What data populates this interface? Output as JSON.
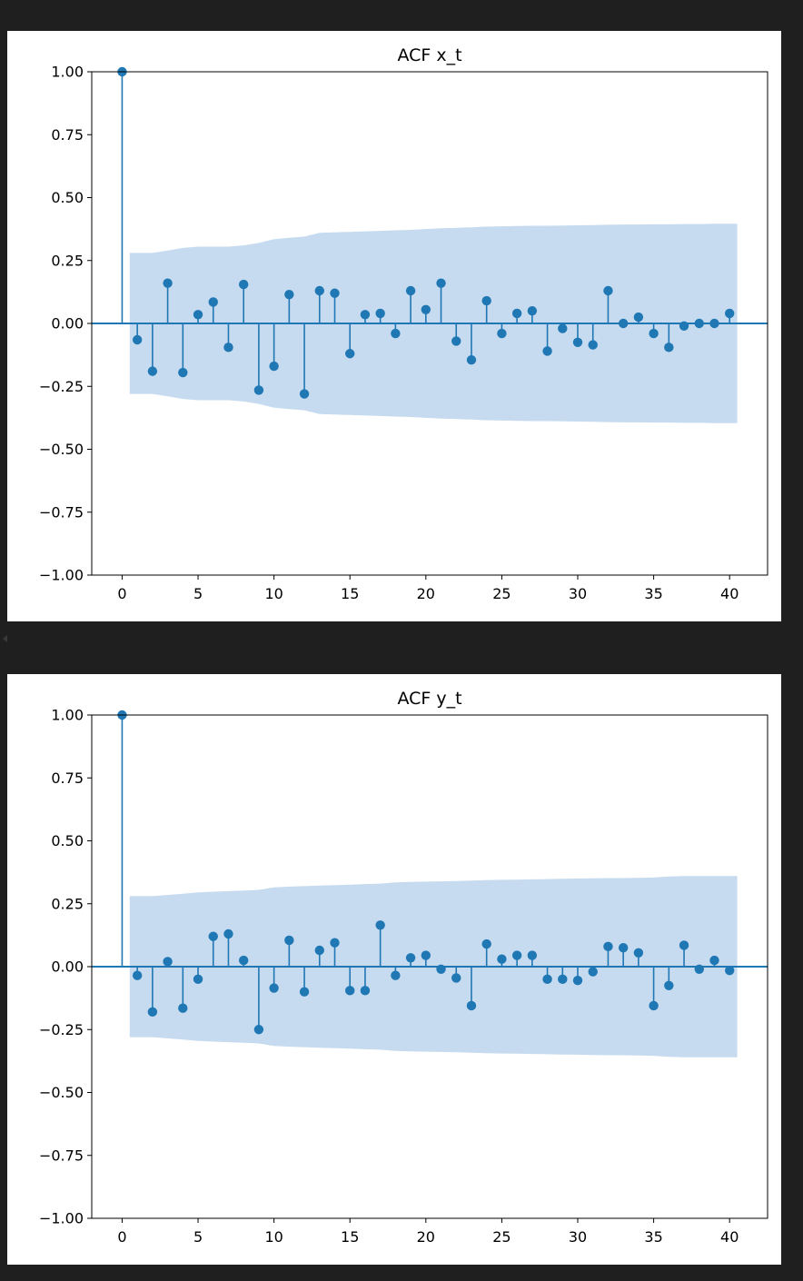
{
  "colors": {
    "stem": "#1f77b4",
    "band": "#c6dbef",
    "frame": "#000000"
  },
  "chart_data": [
    {
      "type": "stem",
      "title": "ACF x_t",
      "xlabel": "",
      "ylabel": "",
      "xlim": [
        -2,
        42.5
      ],
      "ylim": [
        -1.0,
        1.0
      ],
      "xticks": [
        0,
        5,
        10,
        15,
        20,
        25,
        30,
        35,
        40
      ],
      "xtick_labels": [
        "0",
        "5",
        "10",
        "15",
        "20",
        "25",
        "30",
        "35",
        "40"
      ],
      "yticks": [
        -1.0,
        -0.75,
        -0.5,
        -0.25,
        0.0,
        0.25,
        0.5,
        0.75,
        1.0
      ],
      "ytick_labels": [
        "−1.00",
        "−0.75",
        "−0.50",
        "−0.25",
        "0.00",
        "0.25",
        "0.50",
        "0.75",
        "1.00"
      ],
      "lags": [
        0,
        1,
        2,
        3,
        4,
        5,
        6,
        7,
        8,
        9,
        10,
        11,
        12,
        13,
        14,
        15,
        16,
        17,
        18,
        19,
        20,
        21,
        22,
        23,
        24,
        25,
        26,
        27,
        28,
        29,
        30,
        31,
        32,
        33,
        34,
        35,
        36,
        37,
        38,
        39,
        40
      ],
      "values": [
        1.0,
        -0.065,
        -0.19,
        0.16,
        -0.195,
        0.035,
        0.085,
        -0.095,
        0.155,
        -0.265,
        -0.17,
        0.115,
        -0.28,
        0.13,
        0.12,
        -0.12,
        0.035,
        0.04,
        -0.04,
        0.13,
        0.055,
        0.16,
        -0.07,
        -0.145,
        0.09,
        -0.04,
        0.04,
        0.05,
        -0.11,
        -0.02,
        -0.075,
        -0.085,
        0.13,
        0.0,
        0.025,
        -0.04,
        -0.095,
        -0.01,
        0.0,
        0.0,
        0.04
      ],
      "confidence_band": [
        0.28,
        0.28,
        0.28,
        0.29,
        0.3,
        0.305,
        0.305,
        0.305,
        0.31,
        0.32,
        0.335,
        0.34,
        0.345,
        0.36,
        0.362,
        0.364,
        0.366,
        0.368,
        0.37,
        0.372,
        0.375,
        0.378,
        0.38,
        0.382,
        0.385,
        0.386,
        0.387,
        0.388,
        0.388,
        0.389,
        0.39,
        0.391,
        0.392,
        0.393,
        0.393,
        0.394,
        0.394,
        0.395,
        0.395,
        0.396,
        0.396
      ]
    },
    {
      "type": "stem",
      "title": "ACF y_t",
      "xlabel": "",
      "ylabel": "",
      "xlim": [
        -2,
        42.5
      ],
      "ylim": [
        -1.0,
        1.0
      ],
      "xticks": [
        0,
        5,
        10,
        15,
        20,
        25,
        30,
        35,
        40
      ],
      "xtick_labels": [
        "0",
        "5",
        "10",
        "15",
        "20",
        "25",
        "30",
        "35",
        "40"
      ],
      "yticks": [
        -1.0,
        -0.75,
        -0.5,
        -0.25,
        0.0,
        0.25,
        0.5,
        0.75,
        1.0
      ],
      "ytick_labels": [
        "−1.00",
        "−0.75",
        "−0.50",
        "−0.25",
        "0.00",
        "0.25",
        "0.50",
        "0.75",
        "1.00"
      ],
      "lags": [
        0,
        1,
        2,
        3,
        4,
        5,
        6,
        7,
        8,
        9,
        10,
        11,
        12,
        13,
        14,
        15,
        16,
        17,
        18,
        19,
        20,
        21,
        22,
        23,
        24,
        25,
        26,
        27,
        28,
        29,
        30,
        31,
        32,
        33,
        34,
        35,
        36,
        37,
        38,
        39,
        40
      ],
      "values": [
        1.0,
        -0.035,
        -0.18,
        0.02,
        -0.165,
        -0.05,
        0.12,
        0.13,
        0.025,
        -0.25,
        -0.085,
        0.105,
        -0.1,
        0.065,
        0.095,
        -0.095,
        -0.095,
        0.165,
        -0.035,
        0.035,
        0.045,
        -0.01,
        -0.045,
        -0.155,
        0.09,
        0.03,
        0.045,
        0.045,
        -0.05,
        -0.05,
        -0.055,
        -0.02,
        0.08,
        0.075,
        0.055,
        -0.155,
        -0.075,
        0.085,
        -0.01,
        0.025,
        -0.015
      ],
      "confidence_band": [
        0.28,
        0.28,
        0.28,
        0.285,
        0.29,
        0.295,
        0.298,
        0.3,
        0.302,
        0.305,
        0.315,
        0.318,
        0.32,
        0.322,
        0.324,
        0.326,
        0.328,
        0.33,
        0.335,
        0.337,
        0.338,
        0.339,
        0.34,
        0.342,
        0.344,
        0.345,
        0.346,
        0.347,
        0.348,
        0.349,
        0.35,
        0.351,
        0.352,
        0.352,
        0.353,
        0.354,
        0.358,
        0.36,
        0.36,
        0.36,
        0.36
      ]
    }
  ]
}
